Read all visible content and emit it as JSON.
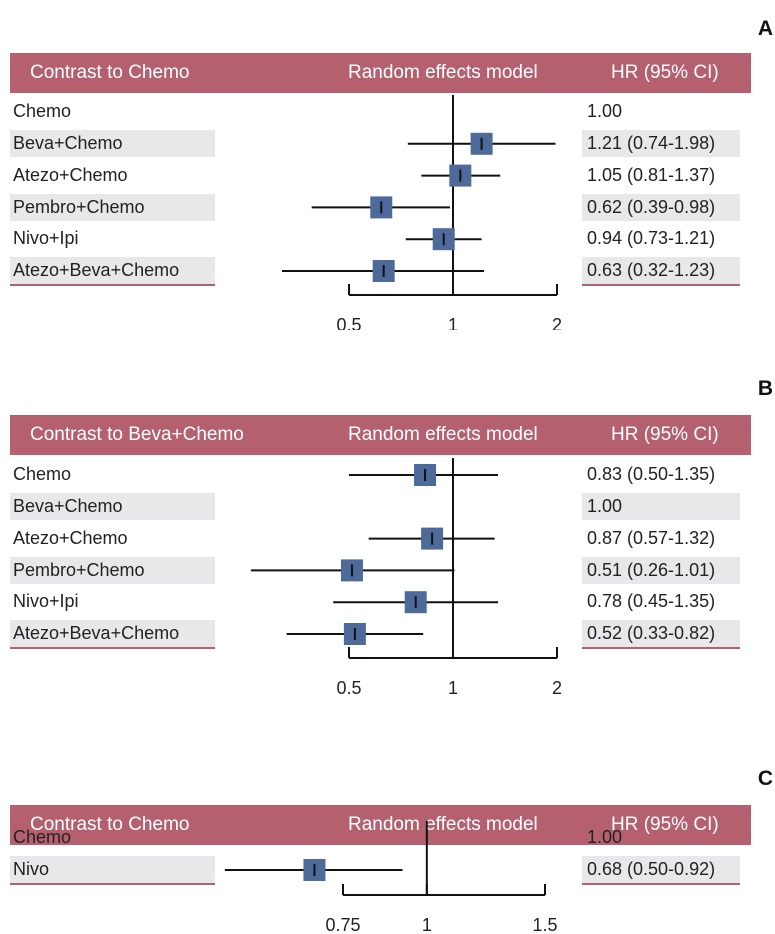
{
  "colors": {
    "header": "#b5606f",
    "marker": "#4d6a9a",
    "shade": "#e8e8ea"
  },
  "chart_data": [
    {
      "type": "forest",
      "panel": "A",
      "header": {
        "left": "Contrast to Chemo",
        "middle": "Random effects model",
        "right": "HR (95% CI)"
      },
      "log_x": true,
      "xlim": [
        0.3,
        2.0
      ],
      "ticks": [
        {
          "value": 0.5,
          "label": "0.5"
        },
        {
          "value": 1,
          "label": "1"
        },
        {
          "value": 2,
          "label": "2"
        }
      ],
      "rows": [
        {
          "label": "Chemo",
          "hr": 1.0,
          "lo": null,
          "hi": null,
          "text": "1.00"
        },
        {
          "label": "Beva+Chemo",
          "hr": 1.21,
          "lo": 0.74,
          "hi": 1.98,
          "text": "1.21 (0.74-1.98)"
        },
        {
          "label": "Atezo+Chemo",
          "hr": 1.05,
          "lo": 0.81,
          "hi": 1.37,
          "text": "1.05 (0.81-1.37)"
        },
        {
          "label": "Pembro+Chemo",
          "hr": 0.62,
          "lo": 0.39,
          "hi": 0.98,
          "text": "0.62 (0.39-0.98)"
        },
        {
          "label": "Nivo+Ipi",
          "hr": 0.94,
          "lo": 0.73,
          "hi": 1.21,
          "text": "0.94 (0.73-1.21)"
        },
        {
          "label": "Atezo+Beva+Chemo",
          "hr": 0.63,
          "lo": 0.32,
          "hi": 1.23,
          "text": "0.63 (0.32-1.23)"
        }
      ]
    },
    {
      "type": "forest",
      "panel": "B",
      "header": {
        "left": "Contrast to Beva+Chemo",
        "middle": "Random effects model",
        "right": "HR (95% CI)"
      },
      "log_x": true,
      "xlim": [
        0.3,
        2.0
      ],
      "ticks": [
        {
          "value": 0.5,
          "label": "0.5"
        },
        {
          "value": 1,
          "label": "1"
        },
        {
          "value": 2,
          "label": "2"
        }
      ],
      "rows": [
        {
          "label": "Chemo",
          "hr": 0.83,
          "lo": 0.5,
          "hi": 1.35,
          "text": "0.83 (0.50-1.35)"
        },
        {
          "label": "Beva+Chemo",
          "hr": 1.0,
          "lo": null,
          "hi": null,
          "text": "1.00"
        },
        {
          "label": "Atezo+Chemo",
          "hr": 0.87,
          "lo": 0.57,
          "hi": 1.32,
          "text": "0.87 (0.57-1.32)"
        },
        {
          "label": "Pembro+Chemo",
          "hr": 0.51,
          "lo": 0.26,
          "hi": 1.01,
          "text": "0.51 (0.26-1.01)"
        },
        {
          "label": "Nivo+Ipi",
          "hr": 0.78,
          "lo": 0.45,
          "hi": 1.35,
          "text": "0.78 (0.45-1.35)"
        },
        {
          "label": "Atezo+Beva+Chemo",
          "hr": 0.52,
          "lo": 0.33,
          "hi": 0.82,
          "text": "0.52 (0.33-0.82)"
        }
      ]
    },
    {
      "type": "forest",
      "panel": "C",
      "header": {
        "left": "Contrast to Chemo",
        "middle": "Random effects model",
        "right": "HR (95% CI)"
      },
      "log_x": true,
      "xlim": [
        0.6,
        1.5
      ],
      "ticks": [
        {
          "value": 0.75,
          "label": "0.75"
        },
        {
          "value": 1,
          "label": "1"
        },
        {
          "value": 1.5,
          "label": "1.5"
        }
      ],
      "rows": [
        {
          "label": "Chemo",
          "hr": 1.0,
          "lo": null,
          "hi": null,
          "text": "1.00"
        },
        {
          "label": "Nivo",
          "hr": 0.68,
          "lo": 0.5,
          "hi": 0.92,
          "text": "0.68 (0.50-0.92)"
        }
      ]
    }
  ]
}
